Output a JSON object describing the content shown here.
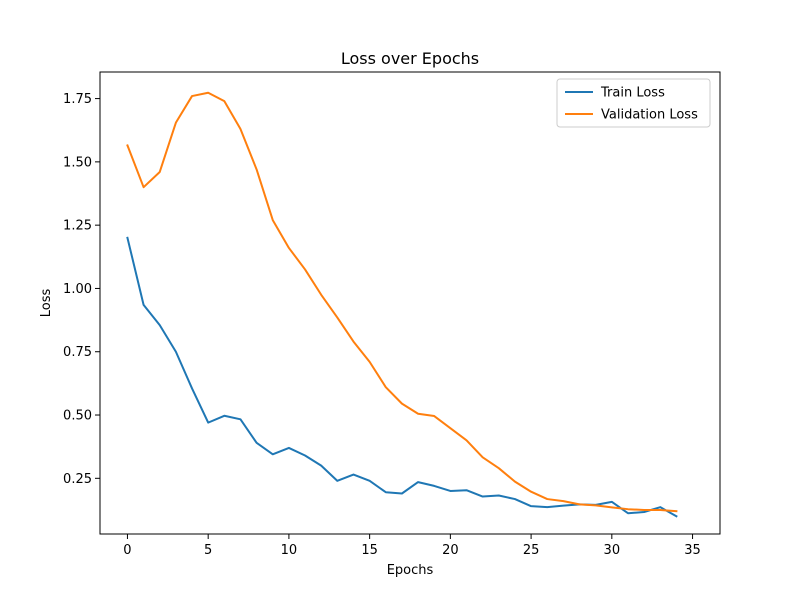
{
  "chart_data": {
    "type": "line",
    "title": "Loss over Epochs",
    "xlabel": "Epochs",
    "ylabel": "Loss",
    "xlim": [
      -1.7,
      36.7
    ],
    "ylim": [
      0.03,
      1.855
    ],
    "xticks": [
      0,
      5,
      10,
      15,
      20,
      25,
      30,
      35
    ],
    "yticks": [
      0.25,
      0.5,
      0.75,
      1.0,
      1.25,
      1.5,
      1.75
    ],
    "ytick_labels": [
      "0.25",
      "0.50",
      "0.75",
      "1.00",
      "1.25",
      "1.50",
      "1.75"
    ],
    "grid": false,
    "legend_position": "top-right",
    "x": [
      0,
      1,
      2,
      3,
      4,
      5,
      6,
      7,
      8,
      9,
      10,
      11,
      12,
      13,
      14,
      15,
      16,
      17,
      18,
      19,
      20,
      21,
      22,
      23,
      24,
      25,
      26,
      27,
      28,
      29,
      30,
      31,
      32,
      33,
      34
    ],
    "series": [
      {
        "name": "Train Loss",
        "color": "#1f77b4",
        "values": [
          1.2,
          0.935,
          0.855,
          0.75,
          0.605,
          0.47,
          0.497,
          0.483,
          0.39,
          0.345,
          0.37,
          0.34,
          0.3,
          0.24,
          0.265,
          0.24,
          0.195,
          0.19,
          0.235,
          0.22,
          0.2,
          0.203,
          0.178,
          0.182,
          0.168,
          0.14,
          0.136,
          0.142,
          0.147,
          0.145,
          0.157,
          0.112,
          0.117,
          0.136,
          0.1
        ]
      },
      {
        "name": "Validation Loss",
        "color": "#ff7f0e",
        "values": [
          1.565,
          1.4,
          1.46,
          1.655,
          1.76,
          1.773,
          1.74,
          1.63,
          1.47,
          1.27,
          1.16,
          1.075,
          0.975,
          0.885,
          0.79,
          0.71,
          0.61,
          0.545,
          0.505,
          0.496,
          0.448,
          0.4,
          0.333,
          0.29,
          0.237,
          0.197,
          0.168,
          0.16,
          0.147,
          0.143,
          0.135,
          0.128,
          0.125,
          0.125,
          0.12
        ]
      }
    ]
  }
}
